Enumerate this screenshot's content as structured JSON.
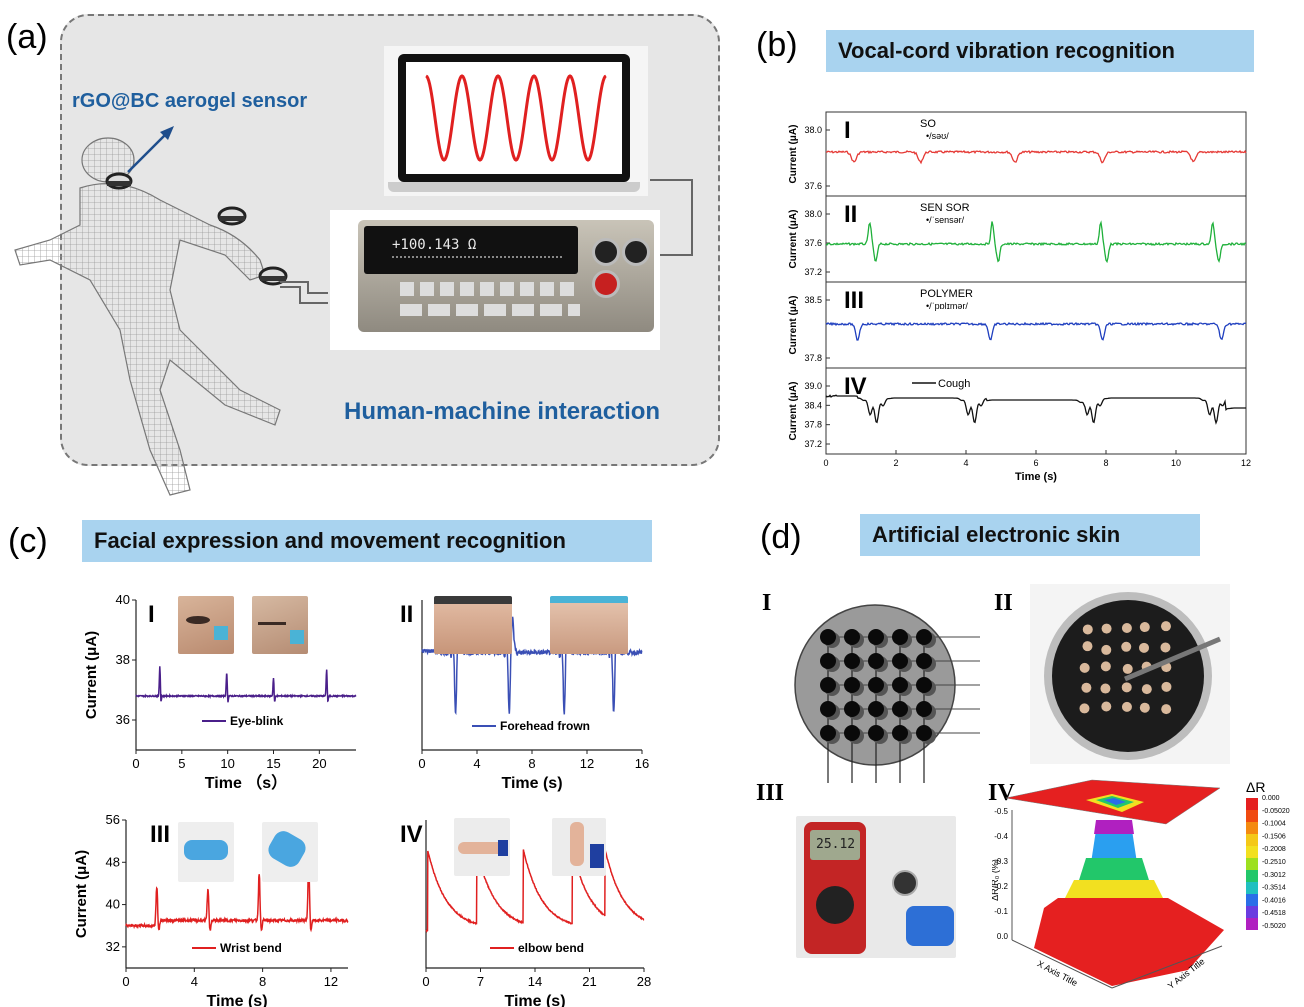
{
  "panel_a": {
    "letter": "(a)",
    "sensor_label": "rGO@BC aerogel sensor",
    "hmi_label": "Human-machine interaction",
    "meter_readout": "+100.143 Ω"
  },
  "panel_b": {
    "letter": "(b)",
    "title": "Vocal-cord vibration recognition",
    "ylabel": "Current (μA)",
    "xlabel": "Time (s)",
    "x_ticks": [
      "0",
      "2",
      "4",
      "6",
      "8",
      "10",
      "12"
    ],
    "rows": [
      {
        "roman": "I",
        "word": "SO",
        "phonetic": "•/səʊ/",
        "ticks": [
          "38.0",
          "37.6"
        ],
        "color": "#e53935"
      },
      {
        "roman": "II",
        "word": "SEN SOR",
        "phonetic": "•/ˈsensər/",
        "ticks": [
          "38.0",
          "37.6",
          "37.2"
        ],
        "color": "#1fb03a"
      },
      {
        "roman": "III",
        "word": "POLYMER",
        "phonetic": "•/ˈpɒlɪmər/",
        "ticks": [
          "38.5",
          "37.8"
        ],
        "color": "#1f3fbf"
      },
      {
        "roman": "IV",
        "word": "Cough",
        "phonetic": "",
        "ticks": [
          "39.0",
          "38.4",
          "37.8",
          "37.2"
        ],
        "color": "#111111"
      }
    ]
  },
  "panel_c": {
    "letter": "(c)",
    "title": "Facial expression and movement recognition",
    "ylabel": "Current (μA)",
    "charts": [
      {
        "roman": "I",
        "legend": "Eye-blink",
        "xlabel": "Time （s）",
        "x_ticks": [
          "0",
          "5",
          "10",
          "15",
          "20"
        ],
        "y_ticks": [
          "40",
          "38",
          "36"
        ],
        "color": "#4a1f8a"
      },
      {
        "roman": "II",
        "legend": "Forehead frown",
        "xlabel": "Time (s)",
        "x_ticks": [
          "0",
          "4",
          "8",
          "12",
          "16"
        ],
        "y_ticks": [],
        "color": "#3a4fb5"
      },
      {
        "roman": "III",
        "legend": "Wrist bend",
        "xlabel": "Time (s)",
        "x_ticks": [
          "0",
          "4",
          "8",
          "12"
        ],
        "y_ticks": [
          "56",
          "48",
          "40",
          "32"
        ],
        "color": "#e02020"
      },
      {
        "roman": "IV",
        "legend": "elbow bend",
        "xlabel": "Time (s)",
        "x_ticks": [
          "0",
          "7",
          "14",
          "21",
          "28"
        ],
        "y_ticks": [],
        "color": "#e02020"
      }
    ]
  },
  "panel_d": {
    "letter": "(d)",
    "title": "Artificial electronic skin",
    "romans": [
      "I",
      "II",
      "III",
      "IV"
    ],
    "multimeter_readout": "25.12",
    "plot3d": {
      "zlabel": "ΔR/R₀ (%)",
      "xaxis": "X Axis Title",
      "yaxis": "Y Axis Title",
      "z_ticks": [
        "-0.5",
        "-0.4",
        "-0.3",
        "-0.2",
        "-0.1",
        "0.0"
      ],
      "colorbar_title": "ΔR",
      "colorbar_ticks": [
        "0.000",
        "-0.05020",
        "-0.1004",
        "-0.1506",
        "-0.2008",
        "-0.2510",
        "-0.3012",
        "-0.3514",
        "-0.4016",
        "-0.4518",
        "-0.5020"
      ]
    }
  },
  "chart_data": [
    {
      "type": "line",
      "title": "Vocal-cord vibration recognition",
      "xlabel": "Time (s)",
      "ylabel": "Current (μA)",
      "xlim": [
        0,
        12
      ],
      "series": [
        {
          "name": "SO",
          "events_at_s": [
            0.8,
            2.7,
            5.4,
            7.9,
            10.5
          ]
        },
        {
          "name": "SEN SOR",
          "events_at_s": [
            1.3,
            4.8,
            7.9,
            11.1
          ]
        },
        {
          "name": "POLYMER",
          "events_at_s": [
            0.9,
            4.7,
            7.9,
            11.3
          ]
        },
        {
          "name": "Cough",
          "events_at_s": [
            1.4,
            4.2,
            7.6,
            11.1
          ]
        }
      ]
    },
    {
      "type": "line",
      "xlabel": "Time （s）",
      "ylabel": "Current (μA)",
      "xlim": [
        0,
        24
      ],
      "ylim": [
        35,
        40
      ],
      "series": [
        {
          "name": "Eye-blink",
          "baseline": 36.8,
          "peaks": [
            {
              "x": 2.6,
              "y": 37.8
            },
            {
              "x": 9.9,
              "y": 37.6
            },
            {
              "x": 15.0,
              "y": 37.4
            },
            {
              "x": 20.8,
              "y": 37.7
            }
          ]
        }
      ]
    },
    {
      "type": "line",
      "xlabel": "Time (s)",
      "xlim": [
        0,
        16
      ],
      "series": [
        {
          "name": "Forehead frown",
          "events_at_s": [
            2.5,
            6.4,
            10.4,
            14.0
          ]
        }
      ]
    },
    {
      "type": "line",
      "xlabel": "Time (s)",
      "ylabel": "Current (μA)",
      "xlim": [
        0,
        13
      ],
      "ylim": [
        28,
        56
      ],
      "series": [
        {
          "name": "Wrist bend",
          "baseline": 37,
          "peaks": [
            {
              "x": 1.8,
              "y": 44
            },
            {
              "x": 4.8,
              "y": 43
            },
            {
              "x": 7.8,
              "y": 46
            },
            {
              "x": 10.7,
              "y": 48
            }
          ]
        }
      ]
    },
    {
      "type": "line",
      "xlabel": "Time (s)",
      "xlim": [
        0,
        28
      ],
      "series": [
        {
          "name": "elbow bend",
          "peaks_at_s": [
            0.2,
            6.5,
            12.5,
            18.8,
            23
          ]
        }
      ]
    }
  ]
}
